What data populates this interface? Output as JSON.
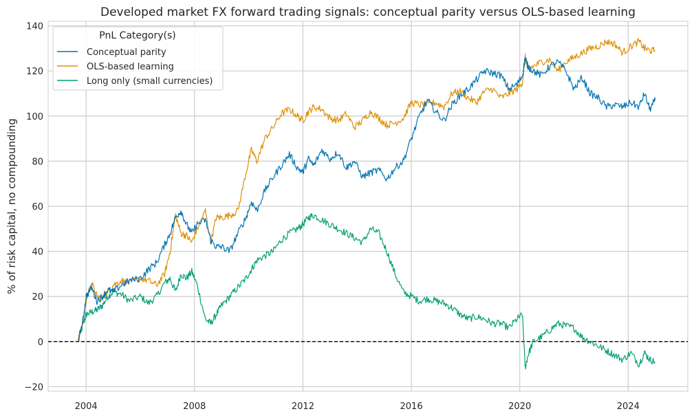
{
  "chart_data": {
    "type": "line",
    "title": "Developed market FX forward trading signals: conceptual parity versus OLS-based learning",
    "xlabel": "",
    "ylabel": "% of risk capital, no compounding",
    "xlim": [
      2002.6,
      2026.2
    ],
    "ylim": [
      -22,
      142
    ],
    "x_ticks": [
      2004,
      2008,
      2012,
      2016,
      2020,
      2024
    ],
    "x_tick_labels": [
      "2004",
      "2008",
      "2012",
      "2016",
      "2020",
      "2024"
    ],
    "y_ticks": [
      -20,
      0,
      20,
      40,
      60,
      80,
      100,
      120,
      140
    ],
    "y_tick_labels": [
      "−20",
      "0",
      "20",
      "40",
      "60",
      "80",
      "100",
      "120",
      "140"
    ],
    "grid": true,
    "reference_line": {
      "y": 0,
      "style": "dashed",
      "color": "#000000"
    },
    "legend": {
      "title": "PnL Category(s)",
      "placement": "top-left"
    },
    "series": [
      {
        "name": "Conceptual parity",
        "color": "#0173b2",
        "x": [
          2003.7,
          2003.9,
          2004.0,
          2004.2,
          2004.4,
          2004.6,
          2004.8,
          2005.0,
          2005.3,
          2005.6,
          2006.0,
          2006.3,
          2006.6,
          2006.9,
          2007.1,
          2007.3,
          2007.5,
          2007.7,
          2007.9,
          2008.1,
          2008.4,
          2008.6,
          2008.8,
          2009.0,
          2009.3,
          2009.6,
          2009.9,
          2010.1,
          2010.3,
          2010.6,
          2010.9,
          2011.2,
          2011.5,
          2011.8,
          2012.0,
          2012.2,
          2012.4,
          2012.7,
          2013.0,
          2013.3,
          2013.6,
          2013.9,
          2014.2,
          2014.5,
          2014.8,
          2015.1,
          2015.4,
          2015.7,
          2016.0,
          2016.3,
          2016.6,
          2016.9,
          2017.2,
          2017.5,
          2017.8,
          2018.1,
          2018.4,
          2018.7,
          2019.0,
          2019.3,
          2019.6,
          2019.9,
          2020.1,
          2020.2,
          2020.3,
          2020.5,
          2020.8,
          2021.1,
          2021.4,
          2021.7,
          2022.0,
          2022.3,
          2022.6,
          2022.9,
          2023.2,
          2023.5,
          2023.8,
          2024.1,
          2024.4,
          2024.6,
          2024.8,
          2025.0
        ],
        "y": [
          0,
          10,
          20,
          24,
          18,
          20,
          23,
          22,
          25,
          27,
          28,
          32,
          35,
          43,
          48,
          55,
          58,
          52,
          48,
          52,
          54,
          45,
          42,
          42,
          40,
          48,
          55,
          62,
          58,
          67,
          73,
          78,
          83,
          77,
          75,
          81,
          78,
          85,
          81,
          84,
          77,
          80,
          73,
          75,
          76,
          72,
          77,
          80,
          90,
          100,
          107,
          102,
          98,
          105,
          109,
          112,
          116,
          120,
          119,
          118,
          112,
          114,
          118,
          126,
          122,
          120,
          118,
          122,
          124,
          120,
          112,
          117,
          110,
          108,
          104,
          105,
          104,
          106,
          104,
          110,
          103,
          107
        ]
      },
      {
        "name": "OLS-based learning",
        "color": "#de8f05",
        "x": [
          2003.7,
          2003.9,
          2004.0,
          2004.2,
          2004.4,
          2004.6,
          2004.8,
          2005.0,
          2005.3,
          2005.6,
          2006.0,
          2006.3,
          2006.6,
          2006.9,
          2007.1,
          2007.3,
          2007.5,
          2007.7,
          2007.9,
          2008.1,
          2008.4,
          2008.6,
          2008.8,
          2009.0,
          2009.3,
          2009.6,
          2009.9,
          2010.1,
          2010.3,
          2010.6,
          2010.9,
          2011.2,
          2011.5,
          2011.8,
          2012.0,
          2012.2,
          2012.4,
          2012.7,
          2013.0,
          2013.3,
          2013.6,
          2013.9,
          2014.2,
          2014.5,
          2014.8,
          2015.1,
          2015.4,
          2015.7,
          2016.0,
          2016.3,
          2016.6,
          2016.9,
          2017.2,
          2017.5,
          2017.8,
          2018.1,
          2018.4,
          2018.7,
          2019.0,
          2019.3,
          2019.6,
          2019.9,
          2020.1,
          2020.2,
          2020.3,
          2020.5,
          2020.8,
          2021.1,
          2021.4,
          2021.7,
          2022.0,
          2022.3,
          2022.6,
          2022.9,
          2023.2,
          2023.5,
          2023.8,
          2024.1,
          2024.4,
          2024.6,
          2024.8,
          2025.0
        ],
        "y": [
          0,
          10,
          18,
          26,
          20,
          19,
          22,
          25,
          27,
          26,
          28,
          27,
          25,
          30,
          40,
          56,
          48,
          47,
          44,
          50,
          58,
          44,
          55,
          55,
          56,
          58,
          75,
          85,
          80,
          90,
          95,
          101,
          103,
          100,
          98,
          102,
          104,
          103,
          99,
          98,
          101,
          95,
          98,
          102,
          99,
          96,
          97,
          99,
          106,
          105,
          105,
          106,
          104,
          110,
          111,
          108,
          106,
          111,
          112,
          108,
          110,
          112,
          115,
          126,
          121,
          122,
          124,
          125,
          120,
          124,
          126,
          128,
          130,
          131,
          133,
          132,
          128,
          131,
          133,
          130,
          129,
          129
        ]
      },
      {
        "name": "Long only (small currencies)",
        "color": "#029e73",
        "x": [
          2003.7,
          2003.9,
          2004.0,
          2004.2,
          2004.4,
          2004.6,
          2004.8,
          2005.0,
          2005.3,
          2005.6,
          2006.0,
          2006.3,
          2006.6,
          2006.9,
          2007.1,
          2007.3,
          2007.5,
          2007.7,
          2007.9,
          2008.1,
          2008.4,
          2008.6,
          2008.8,
          2009.0,
          2009.3,
          2009.6,
          2009.9,
          2010.1,
          2010.3,
          2010.6,
          2010.9,
          2011.2,
          2011.5,
          2011.8,
          2012.0,
          2012.2,
          2012.4,
          2012.7,
          2013.0,
          2013.3,
          2013.6,
          2013.9,
          2014.2,
          2014.5,
          2014.8,
          2015.1,
          2015.4,
          2015.7,
          2016.0,
          2016.3,
          2016.6,
          2016.9,
          2017.2,
          2017.5,
          2017.8,
          2018.1,
          2018.4,
          2018.7,
          2019.0,
          2019.3,
          2019.6,
          2019.9,
          2020.1,
          2020.2,
          2020.3,
          2020.5,
          2020.8,
          2021.1,
          2021.4,
          2021.7,
          2022.0,
          2022.3,
          2022.6,
          2022.9,
          2023.2,
          2023.5,
          2023.8,
          2024.1,
          2024.4,
          2024.6,
          2024.8,
          2025.0
        ],
        "y": [
          0,
          8,
          12,
          13,
          14,
          16,
          20,
          22,
          21,
          18,
          20,
          17,
          20,
          26,
          28,
          22,
          30,
          28,
          31,
          25,
          10,
          8,
          12,
          16,
          20,
          24,
          28,
          32,
          36,
          38,
          40,
          45,
          48,
          50,
          52,
          55,
          56,
          54,
          52,
          50,
          48,
          46,
          44,
          50,
          48,
          40,
          30,
          22,
          20,
          18,
          19,
          18,
          17,
          15,
          12,
          10,
          11,
          10,
          8,
          8,
          6,
          10,
          12,
          -12,
          -6,
          0,
          2,
          5,
          8,
          7,
          6,
          2,
          0,
          -2,
          -4,
          -6,
          -8,
          -5,
          -10,
          -5,
          -8,
          -9
        ]
      }
    ]
  }
}
